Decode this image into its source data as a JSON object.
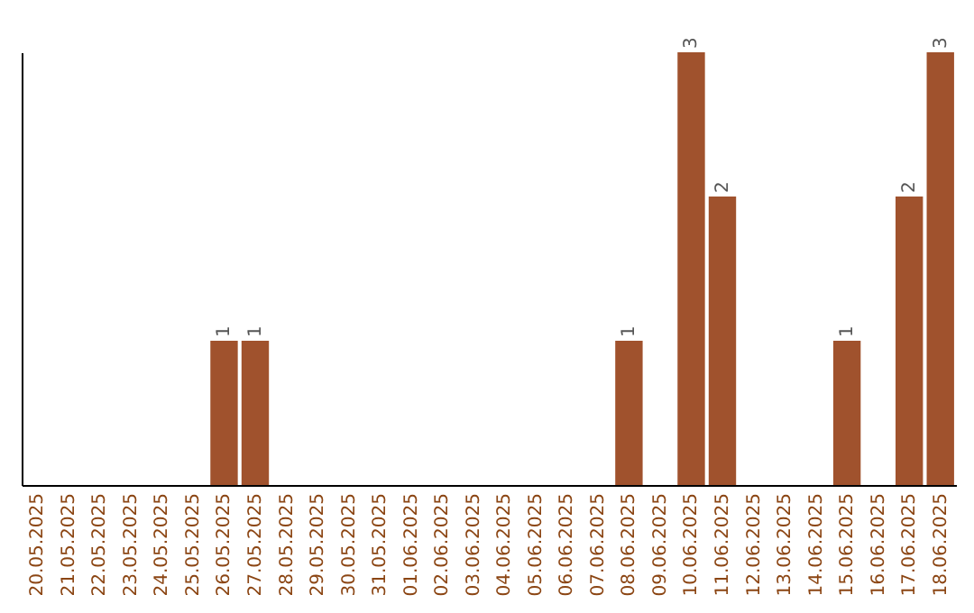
{
  "chart_data": {
    "type": "bar",
    "categories": [
      "20.05.2025",
      "21.05.2025",
      "22.05.2025",
      "23.05.2025",
      "24.05.2025",
      "25.05.2025",
      "26.05.2025",
      "27.05.2025",
      "28.05.2025",
      "29.05.2025",
      "30.05.2025",
      "31.05.2025",
      "01.06.2025",
      "02.06.2025",
      "03.06.2025",
      "04.06.2025",
      "05.06.2025",
      "06.06.2025",
      "07.06.2025",
      "08.06.2025",
      "09.06.2025",
      "10.06.2025",
      "11.06.2025",
      "12.06.2025",
      "13.06.2025",
      "14.06.2025",
      "15.06.2025",
      "16.06.2025",
      "17.06.2025",
      "18.06.2025"
    ],
    "values": [
      null,
      null,
      null,
      null,
      null,
      null,
      1,
      1,
      null,
      null,
      null,
      null,
      null,
      null,
      null,
      null,
      null,
      null,
      null,
      1,
      null,
      3,
      2,
      null,
      null,
      null,
      1,
      null,
      2,
      3
    ],
    "color": "#a0522d",
    "data_labels": true,
    "grid": false,
    "tick_labels": "x"
  }
}
